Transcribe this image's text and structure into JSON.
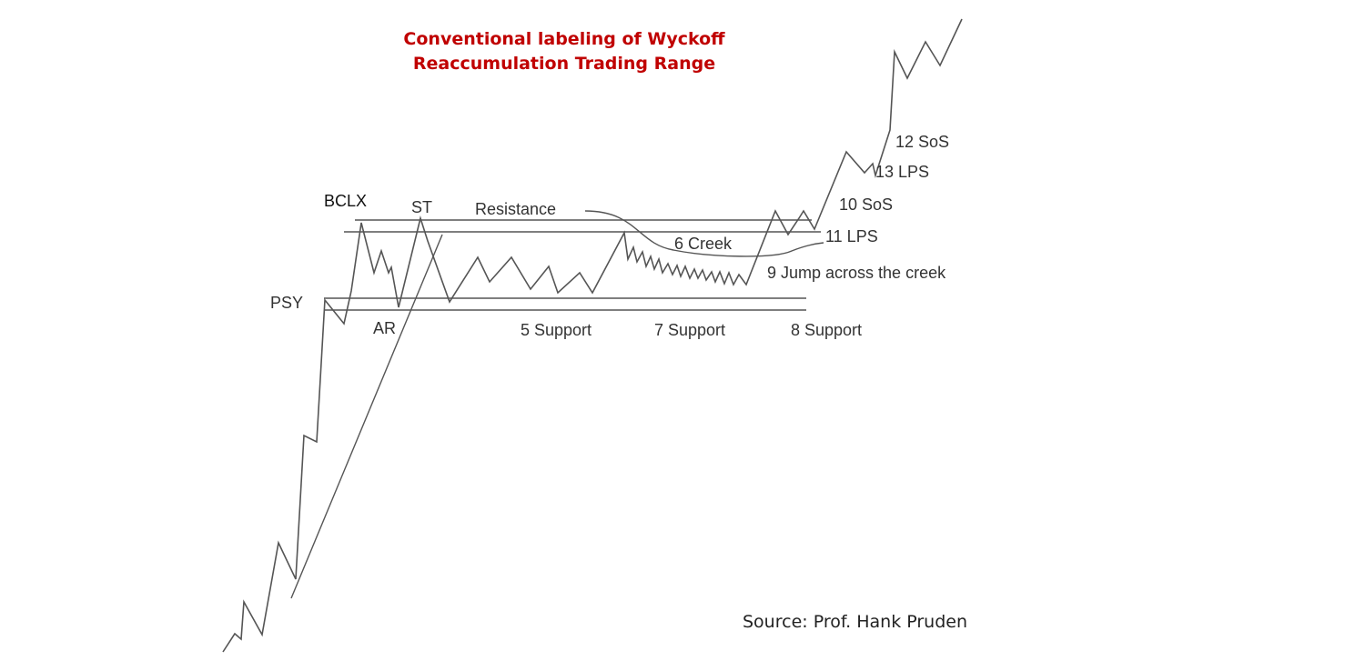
{
  "title": {
    "line1": "Conventional labeling of Wyckoff",
    "line2": "Reaccumulation Trading Range"
  },
  "source": "Source: Prof. Hank Pruden",
  "labels": {
    "psy": "PSY",
    "bclx": "BCLX",
    "st": "ST",
    "ar": "AR",
    "resistance": "Resistance",
    "creek": "6 Creek",
    "jump": "9 Jump across the creek",
    "support5": "5 Support",
    "support7": "7 Support",
    "support8": "8 Support",
    "sos10": "10 SoS",
    "lps11": "11 LPS",
    "sos12": "12 SoS",
    "lps13": "13 LPS"
  },
  "colors": {
    "title": "#c00000",
    "line": "#555555",
    "text": "#333333"
  }
}
